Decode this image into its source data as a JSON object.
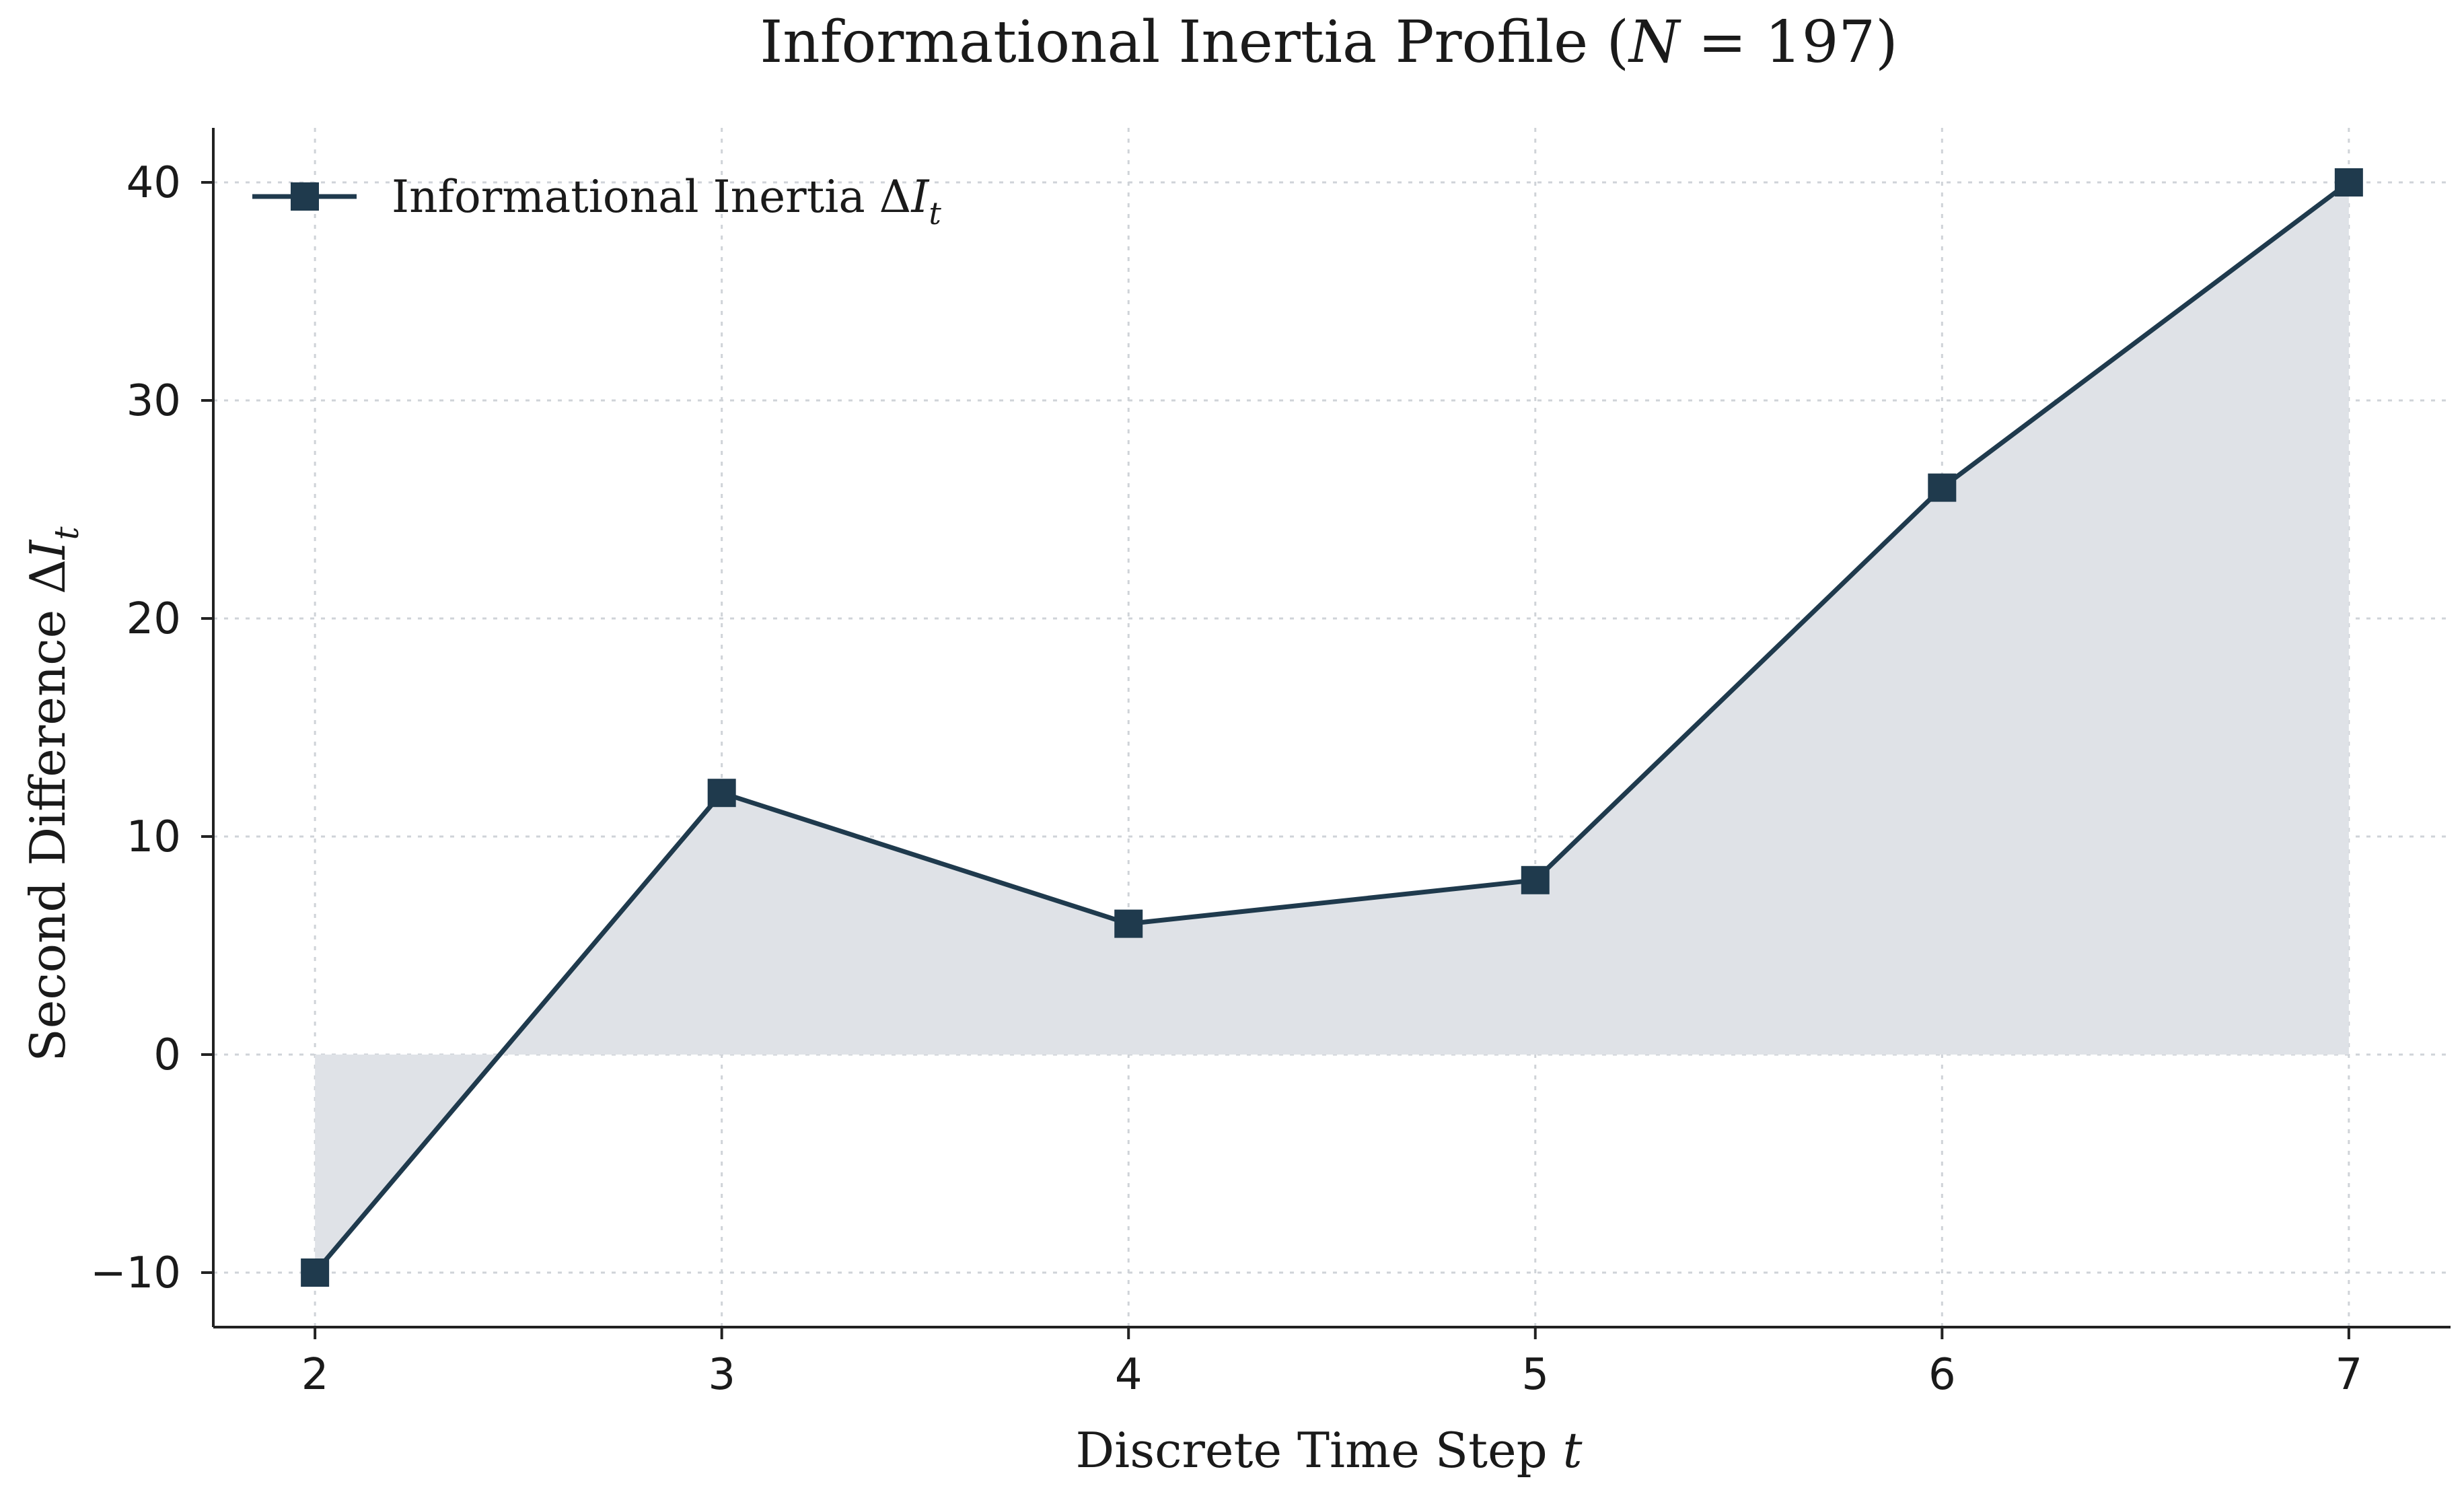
{
  "chart_data": {
    "type": "line",
    "title": "Informational Inertia Profile (",
    "title_math_symbol": "N",
    "title_math_rest": " = 197)",
    "xlabel": "Discrete Time Step ",
    "xlabel_math": "t",
    "ylabel": "Second Difference Δ",
    "ylabel_math": "I",
    "ylabel_math_sub": "t",
    "x": [
      2,
      3,
      4,
      5,
      6,
      7
    ],
    "xticks": [
      "2",
      "3",
      "4",
      "5",
      "6",
      "7"
    ],
    "yticks": [
      {
        "value": -10,
        "label": "−10"
      },
      {
        "value": 0,
        "label": "0"
      },
      {
        "value": 10,
        "label": "10"
      },
      {
        "value": 20,
        "label": "20"
      },
      {
        "value": 30,
        "label": "30"
      },
      {
        "value": 40,
        "label": "40"
      }
    ],
    "xlim": [
      1.75,
      7.25
    ],
    "ylim": [
      -12.5,
      42.5
    ],
    "grid": true,
    "legend_position": "top-left",
    "series": [
      {
        "name": "Informational Inertia Δ",
        "name_math": "I",
        "name_math_sub": "t",
        "values": [
          -10,
          12,
          6,
          8,
          26,
          40
        ],
        "color": "#1f3a4d",
        "marker": "square",
        "fill_to_zero": true,
        "fill_color": "#dfe2e7"
      }
    ]
  }
}
